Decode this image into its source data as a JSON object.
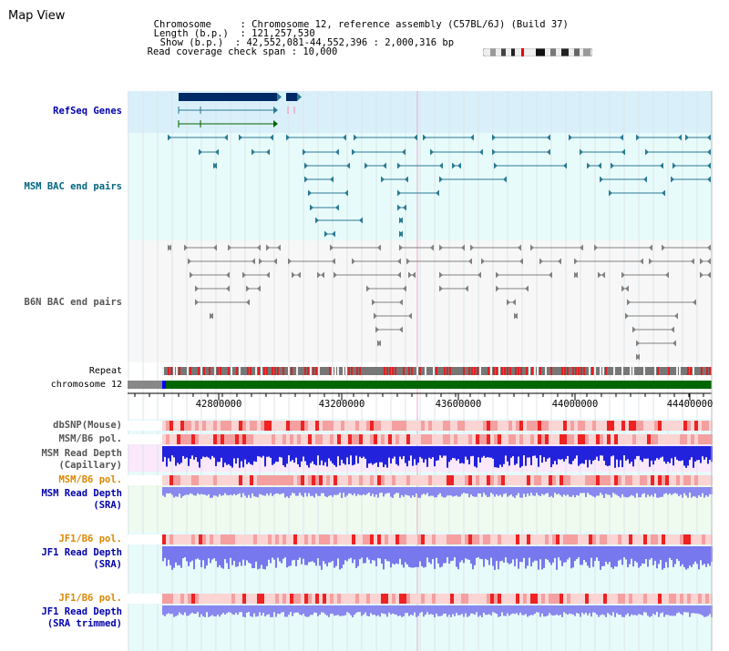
{
  "app_title": "Map View",
  "info": {
    "chromosome_label": "Chromosome",
    "chromosome_value": "Chromosome 12, reference assembly (C57BL/6J) (Build 37)",
    "length_label": "Length (b.p.)",
    "length_value": "121,257,530",
    "show_label": "Show (b.p.)",
    "show_value": "42,552,081-44,552,396 : 2,000,316 bp",
    "coverage_label": "Read coverage check span",
    "coverage_value": "10,000"
  },
  "tracks": {
    "refseq": "RefSeq Genes",
    "msm_bac": "MSM BAC end pairs",
    "b6n_bac": "B6N BAC end pairs",
    "repeat": "Repeat",
    "chromosome": "chromosome 12",
    "dbsnp": "dbSNP(Mouse)",
    "msm_b6_pol_1": "MSM/B6 pol.",
    "msm_read_depth_cap_1": "MSM Read Depth",
    "msm_read_depth_cap_2": "(Capillary)",
    "msm_b6_pol_2": "MSM/B6 pol.",
    "msm_read_depth_sra_1": "MSM Read Depth",
    "msm_read_depth_sra_2": "(SRA)",
    "jf1_b6_pol_1": "JF1/B6 pol.",
    "jf1_read_depth_sra_1": "JF1 Read Depth",
    "jf1_read_depth_sra_2": "(SRA)",
    "jf1_b6_pol_2": "JF1/B6 pol.",
    "jf1_read_depth_trim_1": "JF1 Read Depth",
    "jf1_read_depth_trim_2": "(SRA trimmed)"
  },
  "axis_ticks": [
    "42800000",
    "43200000",
    "43600000",
    "44000000",
    "44400000"
  ],
  "colors": {
    "label_blue": "#0000aa",
    "label_teal": "#006680",
    "label_gray": "#555555",
    "label_orange": "#dd8800",
    "refseq_bg": "#d9f0fa",
    "light_cyan_bg": "#e8fbfb",
    "gene_navy": "#002a66",
    "msm_bac": "#2a7a95",
    "b6n_bac": "#808080",
    "chrom_green": "#006600",
    "depth_blue": "#2222dd",
    "sra_blue": "#8888ee"
  },
  "icons": {
    "cytoband": "chromosome-ideogram-icon"
  }
}
